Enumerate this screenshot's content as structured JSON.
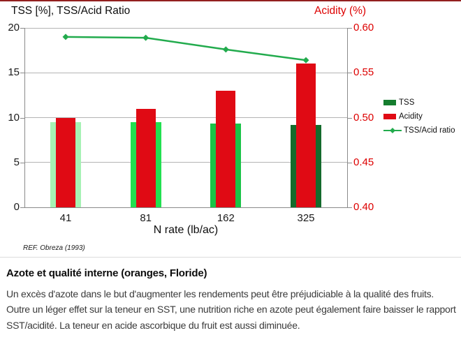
{
  "colors": {
    "top_rule": "#93201f",
    "divider": "#dcdcdc",
    "grid": "#b4b4b4",
    "axis_line": "#8a8a8a",
    "left_text": "#1a1a1a",
    "right_text": "#dd0000",
    "bar_red": "#e00a14",
    "line_green": "#22ab4d",
    "tss_greens": [
      "#a6f2b4",
      "#22e050",
      "#19c447",
      "#146b2c"
    ],
    "legend_tss_green": "#157d2e"
  },
  "chart_data": {
    "type": "bar",
    "title_left": "TSS [%], TSS/Acid Ratio",
    "title_right": "Acidity (%)",
    "xlabel": "N rate (lb/ac)",
    "categories": [
      "41",
      "81",
      "162",
      "325"
    ],
    "left_axis": {
      "range": [
        0,
        20
      ],
      "ticks": [
        0,
        5,
        10,
        15,
        20
      ],
      "tick_labels": [
        "0",
        "5",
        "10",
        "15",
        "20"
      ]
    },
    "right_axis": {
      "range": [
        0.4,
        0.6
      ],
      "ticks": [
        0.4,
        0.45,
        0.5,
        0.55,
        0.6
      ],
      "tick_labels": [
        "0.40",
        "0.45",
        "0.50",
        "0.55",
        "0.60"
      ]
    },
    "grid": true,
    "legend_position": "right",
    "series": [
      {
        "name": "TSS",
        "type": "bar",
        "axis": "left",
        "values": [
          9.5,
          9.5,
          9.3,
          9.2
        ]
      },
      {
        "name": "Acidity",
        "type": "bar",
        "axis": "right",
        "values": [
          0.5,
          0.51,
          0.53,
          0.56
        ]
      },
      {
        "name": "TSS/Acid ratio",
        "type": "line",
        "axis": "left",
        "values": [
          19.0,
          18.9,
          17.6,
          16.4
        ]
      }
    ],
    "legend": [
      {
        "label": "TSS",
        "swatch": "rect"
      },
      {
        "label": "Acidity",
        "swatch": "rect"
      },
      {
        "label": "TSS/Acid ratio",
        "swatch": "line-diamond"
      }
    ]
  },
  "figure": {
    "reference": "REF. Obreza (1993)"
  },
  "article": {
    "heading": "Azote et qualité interne (oranges, Floride)",
    "body": "Un excès d'azote dans le but d'augmenter les rendements peut être préjudiciable à la qualité des fruits. Outre un léger effet sur la teneur en SST, une nutrition riche en azote peut également faire baisser le rapport SST/acidité. La teneur en acide ascorbique du fruit est aussi diminuée."
  }
}
